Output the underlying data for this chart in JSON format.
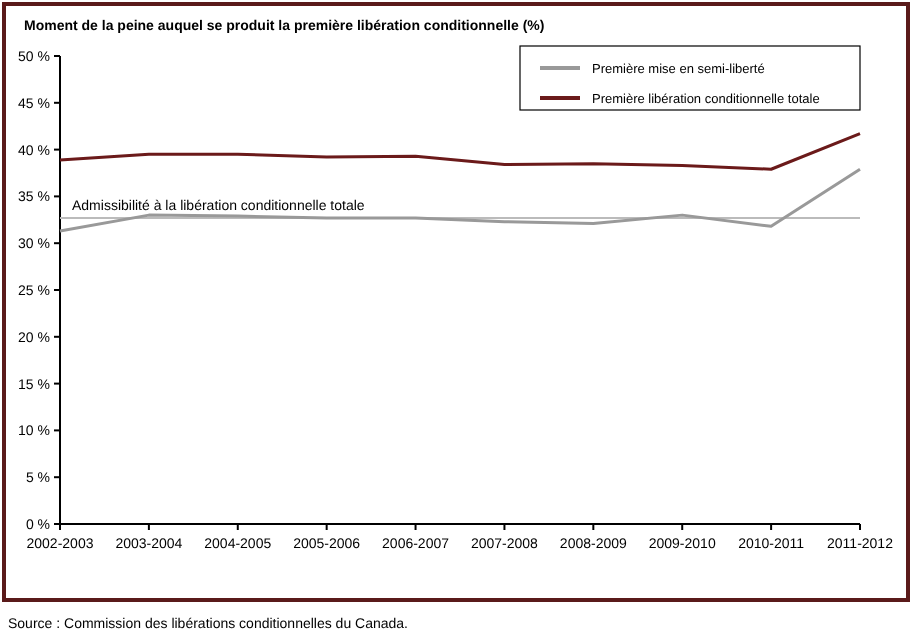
{
  "chart_data": {
    "type": "line",
    "title": "Moment de la peine auquel se produit la première libération conditionnelle (%)",
    "categories": [
      "2002-2003",
      "2003-2004",
      "2004-2005",
      "2005-2006",
      "2006-2007",
      "2007-2008",
      "2008-2009",
      "2009-2010",
      "2010-2011",
      "2011-2012"
    ],
    "series": [
      {
        "name": "Première mise en semi-liberté",
        "color": "#999999",
        "values": [
          31.3,
          33.0,
          32.9,
          32.7,
          32.7,
          32.3,
          32.1,
          33.0,
          31.8,
          37.9
        ]
      },
      {
        "name": "Première libération conditionnelle totale",
        "color": "#6b1a1a",
        "values": [
          38.9,
          39.5,
          39.5,
          39.2,
          39.3,
          38.4,
          38.5,
          38.3,
          37.9,
          41.7
        ]
      }
    ],
    "ylim": [
      0,
      50
    ],
    "yticks": [
      {
        "value": 0,
        "label": "0 %"
      },
      {
        "value": 5,
        "label": "5 %"
      },
      {
        "value": 10,
        "label": "10 %"
      },
      {
        "value": 15,
        "label": "15 %"
      },
      {
        "value": 20,
        "label": "20 %"
      },
      {
        "value": 25,
        "label": "25 %"
      },
      {
        "value": 30,
        "label": "30 %"
      },
      {
        "value": 35,
        "label": "35 %"
      },
      {
        "value": 40,
        "label": "40 %"
      },
      {
        "value": 45,
        "label": "45 %"
      },
      {
        "value": 50,
        "label": "50 %"
      }
    ],
    "ref_lines": [
      {
        "axis": "y",
        "value": 32.7,
        "label": "Admissibilité à la libération conditionnelle totale",
        "color": "#bbbbbb"
      }
    ],
    "annotations": [
      "Source : Commission des libérations conditionnelles du Canada."
    ],
    "legend": "top right",
    "grid": false,
    "marker": "none",
    "line_style": "solid"
  }
}
